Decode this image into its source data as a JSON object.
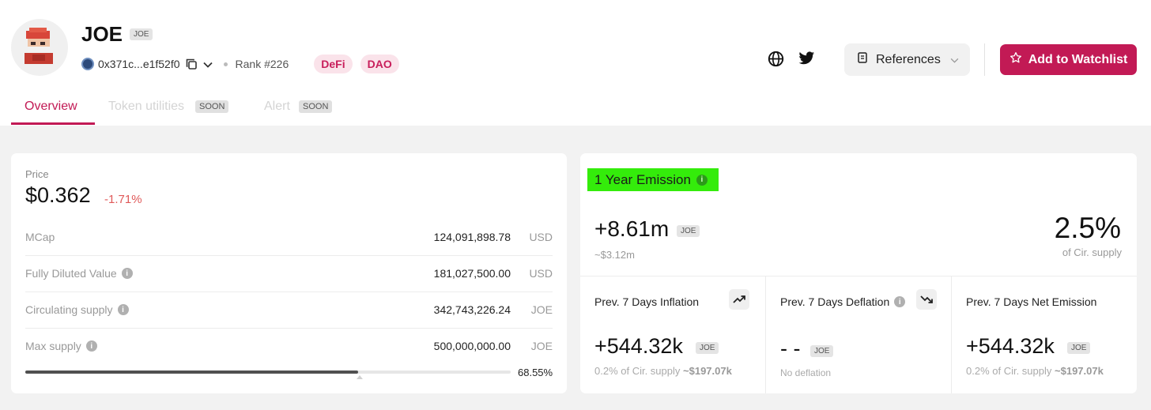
{
  "token": {
    "name": "JOE",
    "symbol": "JOE",
    "address": "0x371c...e1f52f0",
    "rank": "Rank #226",
    "tags": [
      "DeFi",
      "DAO"
    ]
  },
  "actions": {
    "references_label": "References",
    "watchlist_label": "Add to Watchlist"
  },
  "tabs": [
    {
      "label": "Overview"
    },
    {
      "label": "Token utilities",
      "badge": "SOON"
    },
    {
      "label": "Alert",
      "badge": "SOON"
    }
  ],
  "price": {
    "label": "Price",
    "value": "$0.362",
    "change": "-1.71%"
  },
  "stats": [
    {
      "label": "MCap",
      "value": "124,091,898.78",
      "unit": "USD"
    },
    {
      "label": "Fully Diluted Value",
      "value": "181,027,500.00",
      "unit": "USD"
    },
    {
      "label": "Circulating supply",
      "value": "342,743,226.24",
      "unit": "JOE"
    },
    {
      "label": "Max supply",
      "value": "500,000,000.00",
      "unit": "JOE"
    }
  ],
  "supply_progress": {
    "percent": 68.55,
    "label": "68.55%"
  },
  "emission": {
    "title": "1 Year Emission",
    "amount": "+8.61m",
    "amount_unit": "JOE",
    "usd": "~$3.12m",
    "cir_percent": "2.5%",
    "cir_label": "of Cir. supply",
    "cells": [
      {
        "title": "Prev. 7 Days Inflation",
        "value": "+544.32k",
        "unit": "JOE",
        "sub": "0.2% of Cir. supply",
        "sub_usd": "~$197.07k",
        "icon": "trend-up-icon"
      },
      {
        "title": "Prev. 7 Days Deflation",
        "value": "- -",
        "unit": "JOE",
        "sub": "No deflation",
        "icon": "trend-down-icon"
      },
      {
        "title": "Prev. 7 Days Net Emission",
        "value": "+544.32k",
        "unit": "JOE",
        "sub": "0.2% of Cir. supply",
        "sub_usd": "~$197.07k"
      }
    ]
  },
  "colors": {
    "accent": "#c21a55",
    "tag_bg": "#fae3ea",
    "negative": "#e05a5a",
    "highlight": "#34ec0b"
  }
}
